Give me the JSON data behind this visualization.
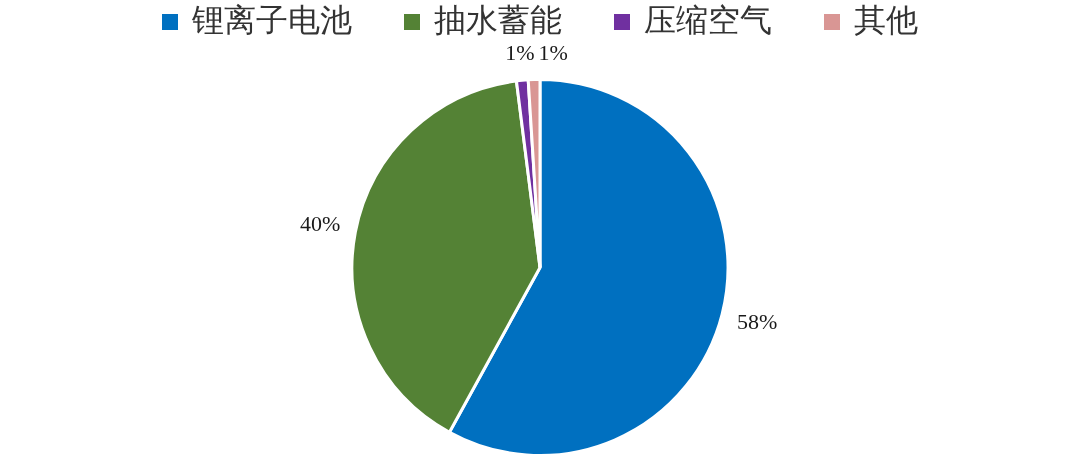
{
  "chart_data": {
    "type": "pie",
    "categories": [
      "锂离子电池",
      "抽水蓄能",
      "压缩空气",
      "其他"
    ],
    "values": [
      58,
      40,
      1,
      1
    ],
    "colors": [
      "#0070c0",
      "#548235",
      "#7030a0",
      "#d99694"
    ],
    "value_labels": [
      "58%",
      "40%",
      "1%",
      "1%"
    ],
    "legend": "top"
  }
}
